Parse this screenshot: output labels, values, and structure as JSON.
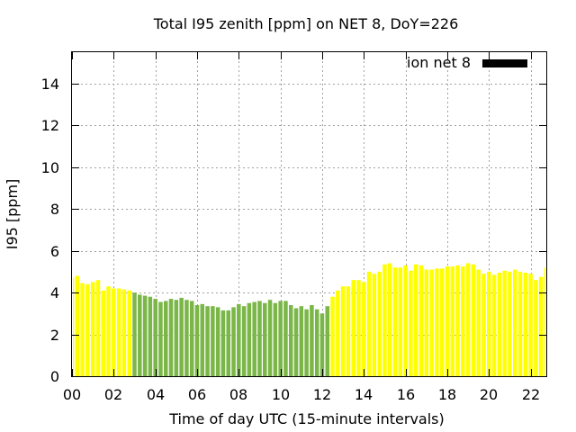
{
  "chart_data": {
    "type": "bar",
    "title": "Total I95 zenith [ppm] on NET 8, DoY=226",
    "xlabel": "Time of day UTC (15-minute intervals)",
    "ylabel": "I95 [ppm]",
    "xlim": [
      0,
      22.75
    ],
    "ylim": [
      0,
      15.5
    ],
    "interval_hours": 0.25,
    "xticks": [
      "00",
      "02",
      "04",
      "06",
      "08",
      "10",
      "12",
      "14",
      "16",
      "18",
      "20",
      "22"
    ],
    "yticks": [
      "0",
      "2",
      "4",
      "6",
      "8",
      "10",
      "12",
      "14"
    ],
    "grid": true,
    "legend": {
      "placement": "top-right",
      "label": "ion net 8",
      "color": "#000000"
    },
    "colors": {
      "yellow": "#ffff00",
      "green": "#7ab648"
    },
    "series": [
      {
        "values": [
          4.7,
          4.8,
          4.45,
          4.4,
          4.5,
          4.6,
          4.1,
          4.3,
          4.2,
          4.2,
          4.15,
          4.1,
          4.0,
          3.9,
          3.85,
          3.8,
          3.7,
          3.55,
          3.6,
          3.7,
          3.65,
          3.75,
          3.65,
          3.6,
          3.4,
          3.45,
          3.35,
          3.35,
          3.3,
          3.15,
          3.15,
          3.3,
          3.45,
          3.35,
          3.5,
          3.55,
          3.6,
          3.5,
          3.65,
          3.5,
          3.6,
          3.6,
          3.4,
          3.25,
          3.35,
          3.2,
          3.4,
          3.2,
          3.0,
          3.35,
          3.8,
          4.1,
          4.3,
          4.3,
          4.6,
          4.6,
          4.5,
          5.0,
          4.9,
          5.0,
          5.35,
          5.4,
          5.2,
          5.2,
          5.3,
          5.05,
          5.35,
          5.3,
          5.1,
          5.1,
          5.15,
          5.15,
          5.25,
          5.25,
          5.3,
          5.25,
          5.4,
          5.35,
          5.1,
          4.9,
          5.0,
          4.85,
          4.95,
          5.05,
          5.0,
          5.1,
          5.0,
          4.95,
          4.9,
          4.6,
          4.75,
          5.2
        ],
        "colors": [
          "yellow",
          "yellow",
          "yellow",
          "yellow",
          "yellow",
          "yellow",
          "yellow",
          "yellow",
          "yellow",
          "yellow",
          "yellow",
          "yellow",
          "green",
          "green",
          "green",
          "green",
          "green",
          "green",
          "green",
          "green",
          "green",
          "green",
          "green",
          "green",
          "green",
          "green",
          "green",
          "green",
          "green",
          "green",
          "green",
          "green",
          "green",
          "green",
          "green",
          "green",
          "green",
          "green",
          "green",
          "green",
          "green",
          "green",
          "green",
          "green",
          "green",
          "green",
          "green",
          "green",
          "green",
          "green",
          "yellow",
          "yellow",
          "yellow",
          "yellow",
          "yellow",
          "yellow",
          "yellow",
          "yellow",
          "yellow",
          "yellow",
          "yellow",
          "yellow",
          "yellow",
          "yellow",
          "yellow",
          "yellow",
          "yellow",
          "yellow",
          "yellow",
          "yellow",
          "yellow",
          "yellow",
          "yellow",
          "yellow",
          "yellow",
          "yellow",
          "yellow",
          "yellow",
          "yellow",
          "yellow",
          "yellow",
          "yellow",
          "yellow",
          "yellow",
          "yellow",
          "yellow",
          "yellow",
          "yellow",
          "yellow",
          "yellow",
          "yellow",
          "yellow"
        ]
      }
    ]
  }
}
